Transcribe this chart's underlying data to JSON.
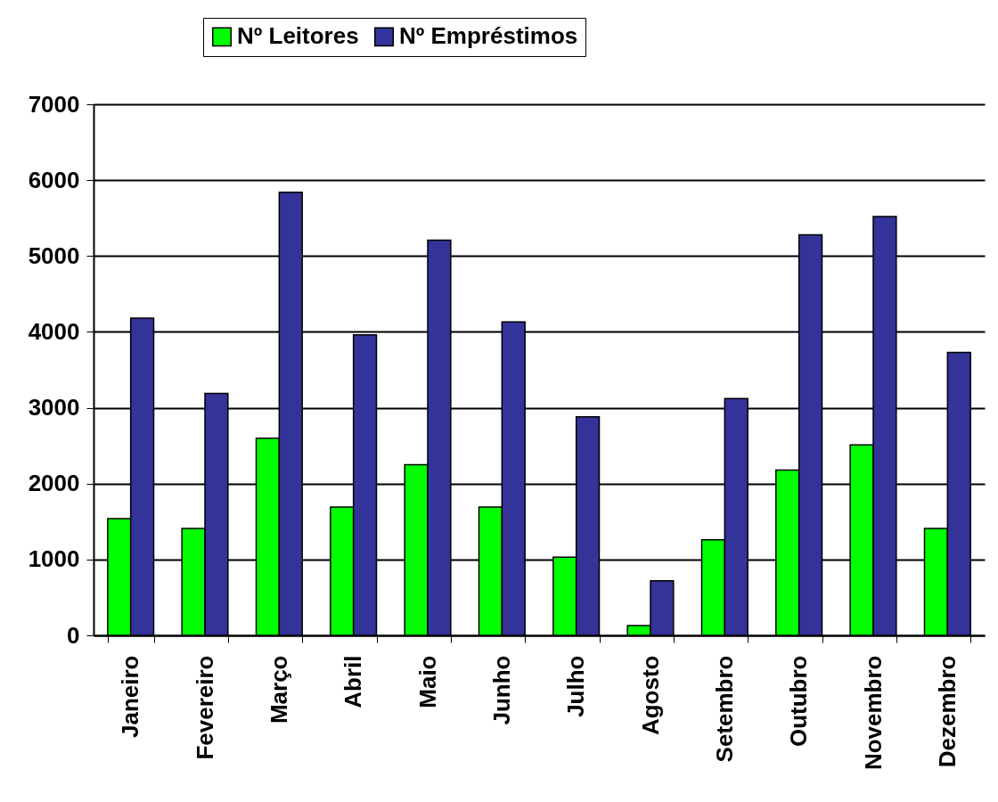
{
  "chart_data": {
    "type": "bar",
    "categories": [
      "Janeiro",
      "Fevereiro",
      "Março",
      "Abril",
      "Maio",
      "Junho",
      "Julho",
      "Agosto",
      "Setembro",
      "Outubro",
      "Novembro",
      "Dezembro"
    ],
    "series": [
      {
        "name": "Nº Leitores",
        "color": "#00ff00",
        "values": [
          1540,
          1410,
          2600,
          1690,
          2250,
          1690,
          1030,
          130,
          1260,
          2180,
          2510,
          1410
        ]
      },
      {
        "name": "Nº Empréstimos",
        "color": "#333399",
        "values": [
          4180,
          3190,
          5840,
          3960,
          5210,
          4130,
          2880,
          720,
          3120,
          5280,
          5520,
          3730
        ]
      }
    ],
    "ylim": [
      0,
      7000
    ],
    "yticks": [
      0,
      1000,
      2000,
      3000,
      4000,
      5000,
      6000,
      7000
    ],
    "grid": "y",
    "legend": "top"
  }
}
